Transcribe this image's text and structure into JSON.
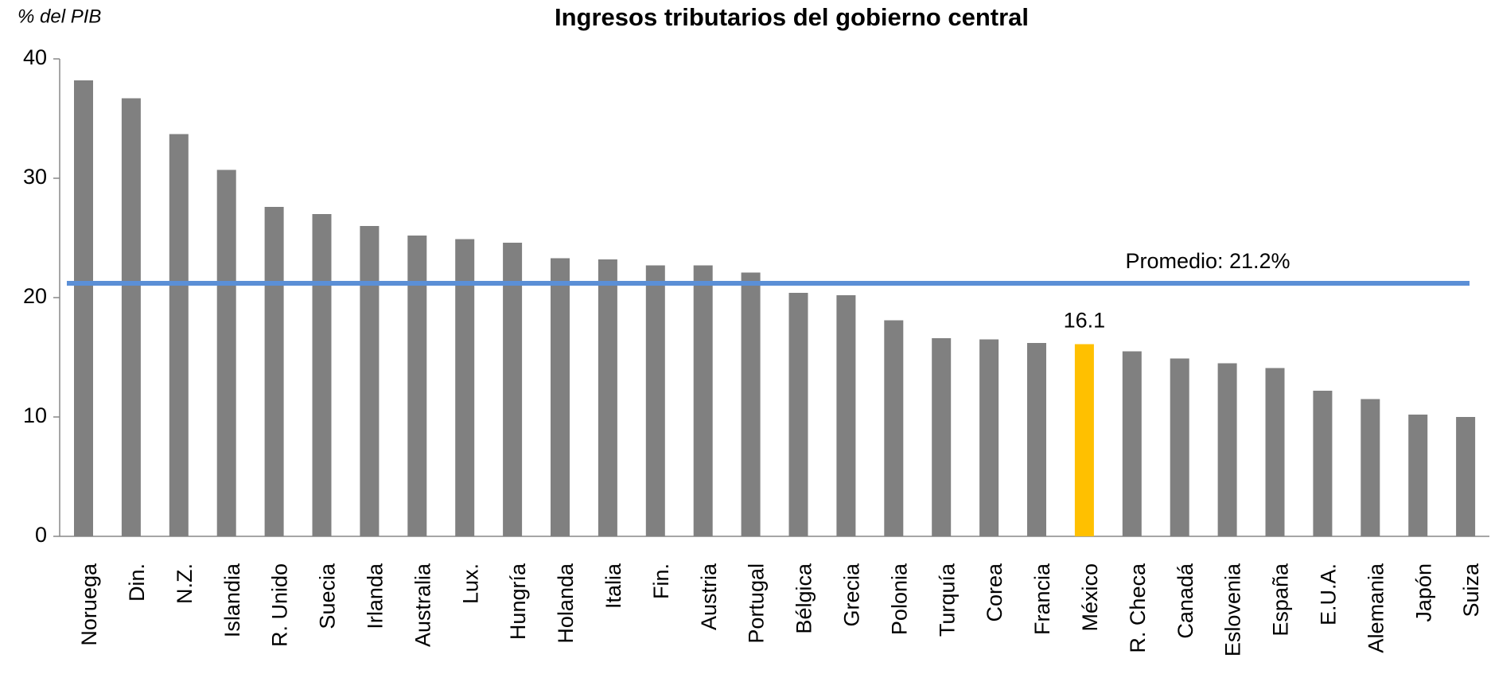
{
  "chart_data": {
    "type": "bar",
    "title": "Ingresos tributarios del gobierno central",
    "y_label": "% del PIB",
    "categories": [
      "Noruega",
      "Din.",
      "N.Z.",
      "Islandia",
      "R. Unido",
      "Suecia",
      "Irlanda",
      "Australia",
      "Lux.",
      "Hungría",
      "Holanda",
      "Italia",
      "Fin.",
      "Austria",
      "Portugal",
      "Bélgica",
      "Grecia",
      "Polonia",
      "Turquía",
      "Corea",
      "Francia",
      "México",
      "R. Checa",
      "Canadá",
      "Eslovenia",
      "España",
      "E.U.A.",
      "Alemania",
      "Japón",
      "Suiza"
    ],
    "values": [
      38.2,
      36.7,
      33.7,
      30.7,
      27.6,
      27.0,
      26.0,
      25.2,
      24.9,
      24.6,
      23.3,
      23.2,
      22.7,
      22.7,
      22.1,
      20.4,
      20.2,
      18.1,
      16.6,
      16.5,
      16.2,
      16.1,
      15.5,
      14.9,
      14.5,
      14.1,
      12.2,
      11.5,
      10.2,
      10.0
    ],
    "value_labels": [
      null,
      null,
      null,
      null,
      null,
      null,
      null,
      null,
      null,
      null,
      null,
      null,
      null,
      null,
      null,
      null,
      null,
      null,
      null,
      null,
      null,
      "16.1",
      null,
      null,
      null,
      null,
      null,
      null,
      null,
      null
    ],
    "colors": [
      "#808080",
      "#808080",
      "#808080",
      "#808080",
      "#808080",
      "#808080",
      "#808080",
      "#808080",
      "#808080",
      "#808080",
      "#808080",
      "#808080",
      "#808080",
      "#808080",
      "#808080",
      "#808080",
      "#808080",
      "#808080",
      "#808080",
      "#808080",
      "#808080",
      "#ffc000",
      "#808080",
      "#808080",
      "#808080",
      "#808080",
      "#808080",
      "#808080",
      "#808080",
      "#808080"
    ],
    "average": {
      "value": 21.2,
      "label": "Promedio: 21.2%",
      "color": "#5b8fd6"
    },
    "ylim": [
      0,
      40
    ],
    "yticks": [
      0,
      10,
      20,
      30,
      40
    ],
    "grid": false
  }
}
